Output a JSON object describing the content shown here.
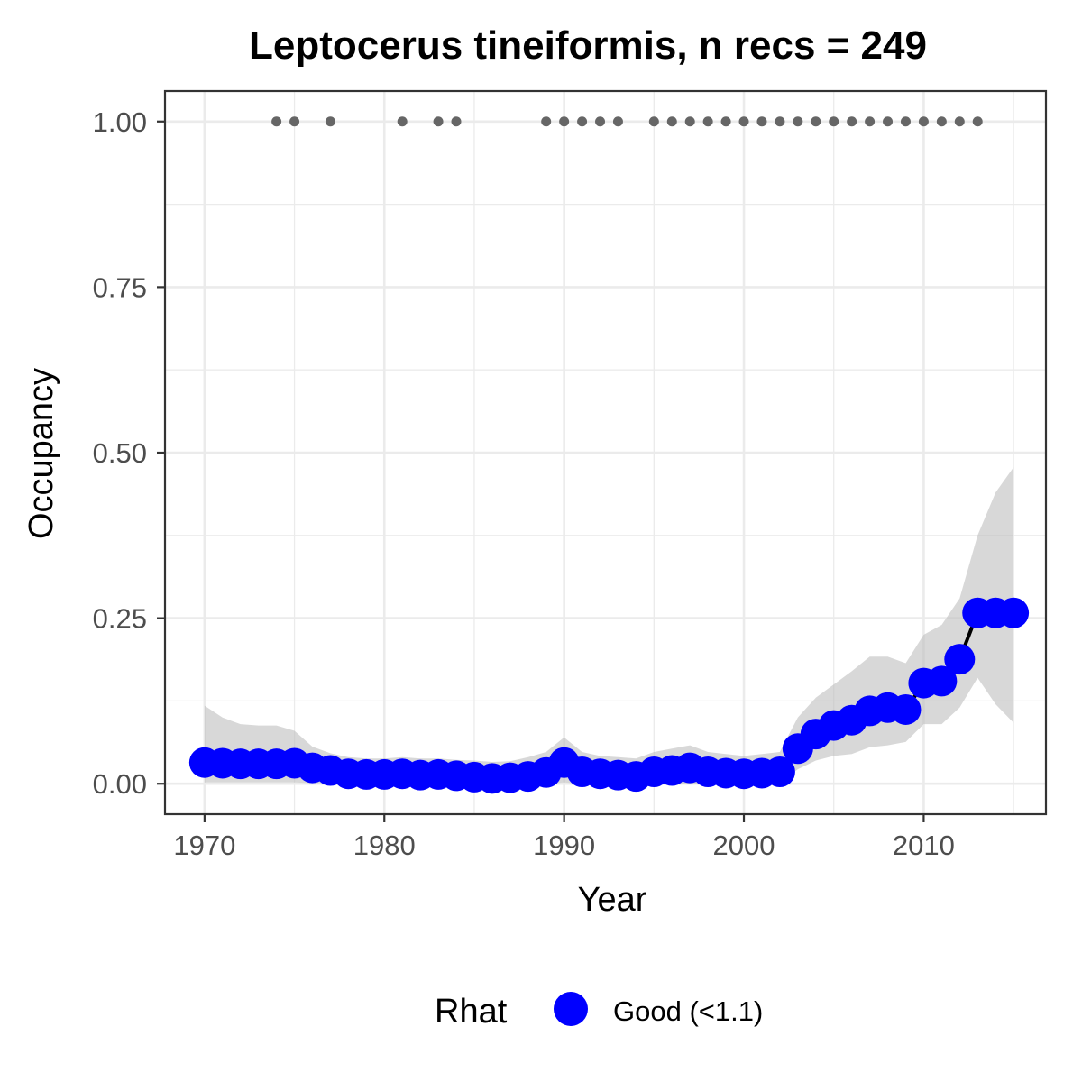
{
  "chart_data": {
    "type": "line",
    "title": "Leptocerus tineiformis, n recs = 249",
    "xlabel": "Year",
    "ylabel": "Occupancy",
    "xlim": [
      1967.8,
      2016.8
    ],
    "ylim": [
      -0.046,
      1.046
    ],
    "x_ticks": [
      1970,
      1980,
      1990,
      2000,
      2010
    ],
    "x_tick_labels": [
      "1970",
      "1980",
      "1990",
      "2000",
      "2010"
    ],
    "y_ticks": [
      0,
      0.25,
      0.5,
      0.75,
      1.0
    ],
    "y_tick_labels": [
      "0.00",
      "0.25",
      "0.50",
      "0.75",
      "1.00"
    ],
    "grid": true,
    "legend": {
      "position": "bottom",
      "title": "Rhat",
      "entries": [
        {
          "label": "Good (<1.1)",
          "color": "#0000FF"
        }
      ]
    },
    "series": [
      {
        "name": "Good (<1.1)",
        "color": "#0000FF",
        "x": [
          1970,
          1971,
          1972,
          1973,
          1974,
          1975,
          1976,
          1977,
          1978,
          1979,
          1980,
          1981,
          1982,
          1983,
          1984,
          1985,
          1986,
          1987,
          1988,
          1989,
          1990,
          1991,
          1992,
          1993,
          1994,
          1995,
          1996,
          1997,
          1998,
          1999,
          2000,
          2001,
          2002,
          2003,
          2004,
          2005,
          2006,
          2007,
          2008,
          2009,
          2010,
          2011,
          2012,
          2013,
          2014,
          2015
        ],
        "y": [
          0.032,
          0.031,
          0.03,
          0.03,
          0.03,
          0.031,
          0.024,
          0.02,
          0.015,
          0.014,
          0.014,
          0.015,
          0.013,
          0.014,
          0.012,
          0.01,
          0.008,
          0.009,
          0.011,
          0.017,
          0.032,
          0.018,
          0.015,
          0.013,
          0.011,
          0.018,
          0.02,
          0.024,
          0.018,
          0.016,
          0.015,
          0.016,
          0.018,
          0.053,
          0.075,
          0.088,
          0.096,
          0.11,
          0.115,
          0.112,
          0.152,
          0.155,
          0.188,
          0.258,
          0.258,
          0.258
        ],
        "lower": [
          0.002,
          0.002,
          0.002,
          0.002,
          0.002,
          0.002,
          0.001,
          0.001,
          0.0,
          0.0,
          0.0,
          0.0,
          0.0,
          0.0,
          0.0,
          0.0,
          0.0,
          0.0,
          0.0,
          0.0,
          0.002,
          0.0,
          0.0,
          0.0,
          0.0,
          0.0,
          0.0,
          0.0,
          0.0,
          0.0,
          0.0,
          0.0,
          0.0,
          0.022,
          0.035,
          0.042,
          0.045,
          0.055,
          0.058,
          0.063,
          0.09,
          0.09,
          0.115,
          0.16,
          0.12,
          0.092
        ],
        "upper": [
          0.118,
          0.1,
          0.09,
          0.088,
          0.088,
          0.08,
          0.056,
          0.046,
          0.04,
          0.038,
          0.038,
          0.04,
          0.038,
          0.038,
          0.036,
          0.035,
          0.033,
          0.034,
          0.04,
          0.048,
          0.07,
          0.048,
          0.042,
          0.04,
          0.038,
          0.048,
          0.053,
          0.058,
          0.048,
          0.045,
          0.042,
          0.045,
          0.048,
          0.1,
          0.13,
          0.15,
          0.17,
          0.192,
          0.192,
          0.182,
          0.225,
          0.24,
          0.28,
          0.375,
          0.44,
          0.478
        ]
      }
    ],
    "records": {
      "color": "#666666",
      "y": 1.0,
      "x": [
        1974,
        1975,
        1977,
        1981,
        1983,
        1984,
        1989,
        1990,
        1991,
        1992,
        1993,
        1995,
        1996,
        1997,
        1998,
        1999,
        2000,
        2001,
        2002,
        2003,
        2004,
        2005,
        2006,
        2007,
        2008,
        2009,
        2010,
        2011,
        2012,
        2013
      ]
    }
  }
}
